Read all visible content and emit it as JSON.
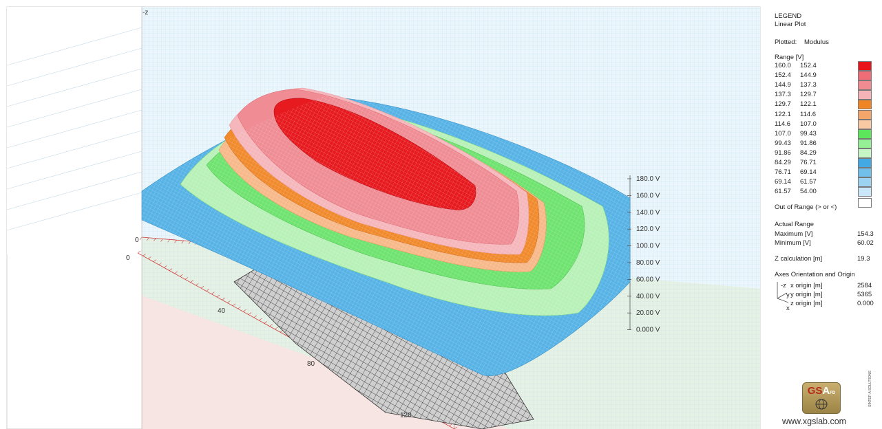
{
  "chart_data": {
    "type": "surface",
    "z_axis_label": "-z",
    "z_ticks": [
      "180.0 V",
      "160.0 V",
      "140.0 V",
      "120.0 V",
      "100.0 V",
      "80.00 V",
      "60.00 V",
      "40.00 V",
      "20.00 V",
      "0.000 V"
    ],
    "x_ticks": [
      "0",
      "40",
      "80",
      "120"
    ],
    "y_ticks": [
      "0"
    ],
    "bands": [
      {
        "from": "160.0",
        "to": "152.4",
        "color": "#e8141a"
      },
      {
        "from": "152.4",
        "to": "144.9",
        "color": "#ef6d76"
      },
      {
        "from": "144.9",
        "to": "137.3",
        "color": "#f08b92"
      },
      {
        "from": "137.3",
        "to": "129.7",
        "color": "#f5b3b7"
      },
      {
        "from": "129.7",
        "to": "122.1",
        "color": "#f08524"
      },
      {
        "from": "122.1",
        "to": "114.6",
        "color": "#f4a66a"
      },
      {
        "from": "114.6",
        "to": "107.0",
        "color": "#f8c9a3"
      },
      {
        "from": "107.0",
        "to": "99.43",
        "color": "#5be65b"
      },
      {
        "from": "99.43",
        "to": "91.86",
        "color": "#95ef95"
      },
      {
        "from": "91.86",
        "to": "84.29",
        "color": "#c6f6c6"
      },
      {
        "from": "84.29",
        "to": "76.71",
        "color": "#42a9e5"
      },
      {
        "from": "76.71",
        "to": "69.14",
        "color": "#71c0ec"
      },
      {
        "from": "69.14",
        "to": "61.57",
        "color": "#9cd3f2"
      },
      {
        "from": "61.57",
        "to": "54.00",
        "color": "#c9e7f8"
      }
    ]
  },
  "legend": {
    "title": "LEGEND",
    "subtitle": "Linear Plot",
    "plotted_label": "Plotted:",
    "plotted_value": "Modulus",
    "range_label": "Range [V]",
    "out_of_range_label": "Out of Range (> or <)",
    "actual_range_label": "Actual Range",
    "maximum_label": "Maximum [V]",
    "maximum_value": "154.3",
    "minimum_label": "Minimum [V]",
    "minimum_value": "60.02",
    "z_calc_label": "Z calculation [m]",
    "z_calc_value": "19.3",
    "axes_label": "Axes Orientation and Origin",
    "axis_z": "-z",
    "axis_y": "y",
    "axis_x": "x",
    "x_origin_label": "x origin [m]",
    "x_origin_value": "2584",
    "y_origin_label": "y origin [m]",
    "y_origin_value": "5365",
    "z_origin_label": "z origin [m]",
    "z_origin_value": "0.000"
  },
  "branding": {
    "logo_gs": "GS",
    "logo_a": "A",
    "logo_fd": "FD",
    "website": "www.xgslab.com",
    "side_text": "SINTEF-A SOLUTIONS"
  }
}
